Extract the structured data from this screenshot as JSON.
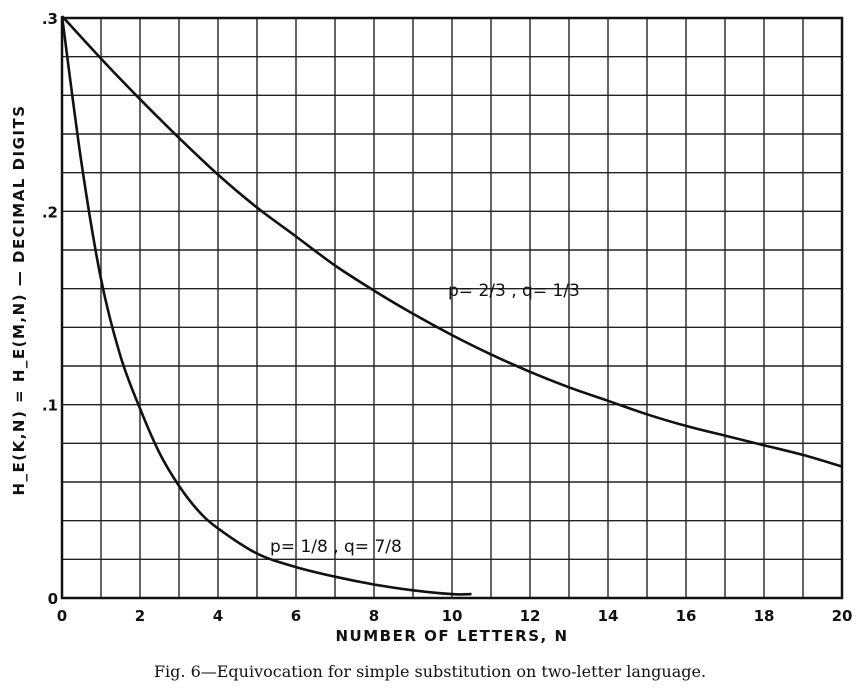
{
  "chart_data": {
    "type": "line",
    "xlabel": "NUMBER OF LETTERS, N",
    "ylabel": "H_E(K,N) = H_E(M,N) — DECIMAL DIGITS",
    "xlim": [
      0,
      20
    ],
    "ylim": [
      0,
      0.3
    ],
    "x_ticks": [
      "0",
      "2",
      "4",
      "6",
      "8",
      "10",
      "12",
      "14",
      "16",
      "18",
      "20"
    ],
    "y_ticks": [
      "0",
      ".1",
      ".2",
      ".3"
    ],
    "grid": true,
    "caption": "Fig. 6—Equivocation for simple substitution on two-letter language.",
    "series": [
      {
        "name": "p = 2/3, q = 1/3",
        "x": [
          0,
          1,
          2,
          3,
          4,
          5,
          6,
          7,
          8,
          9,
          10,
          11,
          12,
          13,
          14,
          15,
          16,
          17,
          18,
          19,
          20
        ],
        "y": [
          0.301,
          0.279,
          0.258,
          0.238,
          0.219,
          0.202,
          0.187,
          0.172,
          0.159,
          0.147,
          0.136,
          0.126,
          0.117,
          0.109,
          0.102,
          0.095,
          0.089,
          0.084,
          0.079,
          0.074,
          0.068
        ]
      },
      {
        "name": "p = 1/8, q = 7/8",
        "x": [
          0,
          0.5,
          1,
          1.5,
          2,
          2.5,
          3,
          3.5,
          4,
          5,
          6,
          7,
          8,
          9,
          10,
          10.5
        ],
        "y": [
          0.301,
          0.225,
          0.165,
          0.125,
          0.098,
          0.075,
          0.058,
          0.045,
          0.036,
          0.023,
          0.016,
          0.011,
          0.007,
          0.004,
          0.002,
          0.002
        ]
      }
    ],
    "annotations": {
      "upper_label": "p= 2/3 , q= 1/3",
      "lower_label": "p= 1/8 , q= 7/8"
    }
  }
}
